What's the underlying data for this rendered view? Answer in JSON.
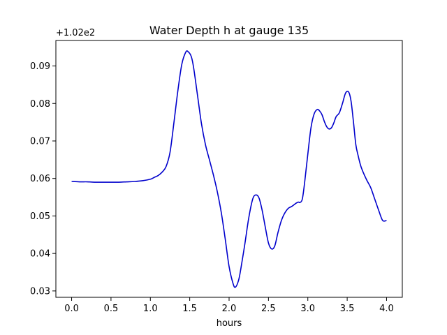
{
  "chart_data": {
    "type": "line",
    "title": "Water Depth h at gauge 135",
    "xlabel": "hours",
    "ylabel": "",
    "y_offset_label": "+1.02e2",
    "y_offset_value": 102,
    "xlim": [
      -0.2,
      4.2
    ],
    "ylim": [
      0.0283,
      0.0968
    ],
    "x_ticks": [
      0.0,
      0.5,
      1.0,
      1.5,
      2.0,
      2.5,
      3.0,
      3.5,
      4.0
    ],
    "x_tick_labels": [
      "0.0",
      "0.5",
      "1.0",
      "1.5",
      "2.0",
      "2.5",
      "3.0",
      "3.5",
      "4.0"
    ],
    "y_ticks": [
      0.03,
      0.04,
      0.05,
      0.06,
      0.07,
      0.08,
      0.09
    ],
    "y_tick_labels": [
      "0.03",
      "0.04",
      "0.05",
      "0.06",
      "0.07",
      "0.08",
      "0.09"
    ],
    "grid": false,
    "series": [
      {
        "color": "#0000cc",
        "x": [
          0.0,
          0.1,
          0.2,
          0.3,
          0.4,
          0.5,
          0.6,
          0.7,
          0.8,
          0.9,
          1.0,
          1.05,
          1.1,
          1.15,
          1.2,
          1.25,
          1.3,
          1.35,
          1.4,
          1.45,
          1.48,
          1.52,
          1.55,
          1.6,
          1.65,
          1.7,
          1.75,
          1.8,
          1.85,
          1.9,
          1.95,
          2.0,
          2.05,
          2.08,
          2.12,
          2.15,
          2.2,
          2.25,
          2.3,
          2.34,
          2.38,
          2.42,
          2.46,
          2.5,
          2.54,
          2.58,
          2.62,
          2.66,
          2.7,
          2.75,
          2.8,
          2.85,
          2.88,
          2.9,
          2.93,
          2.96,
          3.0,
          3.04,
          3.08,
          3.12,
          3.15,
          3.18,
          3.21,
          3.24,
          3.27,
          3.3,
          3.33,
          3.36,
          3.4,
          3.44,
          3.48,
          3.52,
          3.55,
          3.58,
          3.61,
          3.64,
          3.67,
          3.7,
          3.75,
          3.8,
          3.85,
          3.9,
          3.95,
          4.0
        ],
        "y": [
          0.0592,
          0.0591,
          0.0591,
          0.059,
          0.059,
          0.059,
          0.059,
          0.0591,
          0.0592,
          0.0594,
          0.0598,
          0.0603,
          0.0608,
          0.0617,
          0.0632,
          0.067,
          0.075,
          0.0835,
          0.0905,
          0.0937,
          0.0938,
          0.0925,
          0.0895,
          0.082,
          0.0745,
          0.069,
          0.065,
          0.061,
          0.0565,
          0.051,
          0.044,
          0.0365,
          0.032,
          0.031,
          0.0328,
          0.036,
          0.0425,
          0.0495,
          0.0545,
          0.0556,
          0.0548,
          0.0515,
          0.047,
          0.0428,
          0.0412,
          0.042,
          0.0455,
          0.0485,
          0.0505,
          0.052,
          0.0526,
          0.0534,
          0.0537,
          0.0536,
          0.0545,
          0.059,
          0.0665,
          0.0735,
          0.0772,
          0.0784,
          0.078,
          0.077,
          0.0752,
          0.0738,
          0.0732,
          0.0735,
          0.0748,
          0.0765,
          0.0775,
          0.08,
          0.0828,
          0.083,
          0.0805,
          0.075,
          0.069,
          0.066,
          0.0635,
          0.0618,
          0.0595,
          0.0575,
          0.0545,
          0.0515,
          0.0488,
          0.0488
        ]
      }
    ]
  }
}
